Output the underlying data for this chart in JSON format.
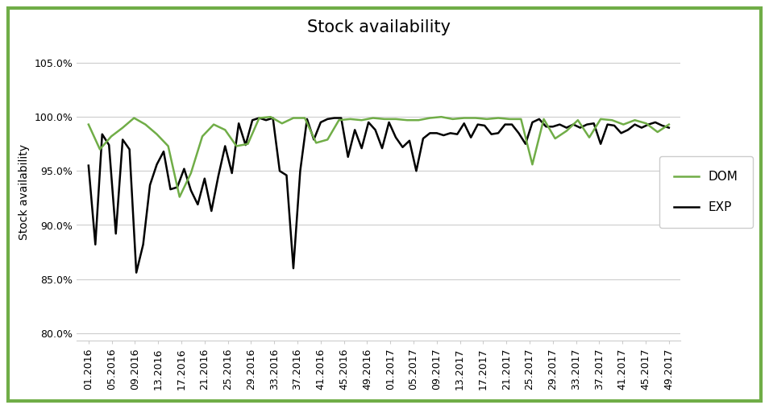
{
  "title": "Stock availability",
  "ylabel": "Stock availability",
  "ytick_labels": [
    "80.0%",
    "85.0%",
    "90.0%",
    "95.0%",
    "100.0%",
    "105.0%"
  ],
  "ytick_vals": [
    0.8,
    0.85,
    0.9,
    0.95,
    1.0,
    1.05
  ],
  "x_labels": [
    "01.2016",
    "05.2016",
    "09.2016",
    "13.2016",
    "17.2016",
    "21.2016",
    "25.2016",
    "29.2016",
    "33.2016",
    "37.2016",
    "41.2016",
    "45.2016",
    "49.2016",
    "01.2017",
    "05.2017",
    "09.2017",
    "13.2017",
    "17.2017",
    "21.2017",
    "25.2017",
    "29.2017",
    "33.2017",
    "37.2017",
    "41.2017",
    "45.2017",
    "49.2017"
  ],
  "dom_color": "#70AD47",
  "exp_color": "#000000",
  "background_color": "#FFFFFF",
  "border_color": "#70AD47",
  "title_fontsize": 15,
  "axis_label_fontsize": 10,
  "tick_fontsize": 9,
  "legend_fontsize": 11,
  "dom_values": [
    0.993,
    0.97,
    0.982,
    0.99,
    0.999,
    0.993,
    0.984,
    0.973,
    0.926,
    0.948,
    0.982,
    0.993,
    0.988,
    0.973,
    0.975,
    0.999,
    1.0,
    0.994,
    0.999,
    0.999,
    0.976,
    0.979,
    0.997,
    0.998,
    0.997,
    0.999,
    0.998,
    0.998,
    0.997,
    0.997,
    0.999,
    1.0,
    0.998,
    0.999,
    0.999,
    0.998,
    0.999,
    0.998,
    0.998,
    0.956,
    0.998,
    0.98,
    0.987,
    0.997,
    0.981,
    0.998,
    0.997,
    0.993,
    0.997,
    0.994,
    0.986,
    0.993
  ],
  "exp_values": [
    0.955,
    0.882,
    0.984,
    0.974,
    0.892,
    0.979,
    0.97,
    0.856,
    0.882,
    0.937,
    0.956,
    0.968,
    0.933,
    0.935,
    0.952,
    0.932,
    0.919,
    0.943,
    0.913,
    0.945,
    0.973,
    0.948,
    0.994,
    0.974,
    0.997,
    0.999,
    0.997,
    0.999,
    0.95,
    0.946,
    0.86,
    0.95,
    0.998,
    0.979,
    0.995,
    0.998,
    0.999,
    0.999,
    0.963,
    0.988,
    0.971,
    0.995,
    0.988,
    0.971,
    0.995,
    0.981,
    0.972,
    0.978,
    0.95,
    0.98,
    0.985,
    0.985,
    0.983,
    0.985,
    0.984,
    0.994,
    0.981,
    0.993,
    0.992,
    0.984,
    0.985,
    0.993,
    0.993,
    0.985,
    0.975,
    0.995,
    0.998,
    0.991,
    0.991,
    0.993,
    0.99,
    0.993,
    0.99,
    0.993,
    0.994,
    0.975,
    0.993,
    0.992,
    0.985,
    0.988,
    0.993,
    0.99,
    0.993,
    0.995,
    0.992,
    0.99
  ]
}
